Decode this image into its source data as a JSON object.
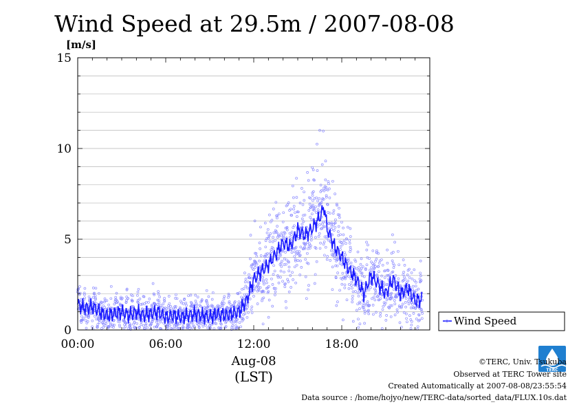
{
  "chart_data": {
    "type": "scatter",
    "title": "Wind Speed at 29.5m / 2007-08-08",
    "ylabel": "[m/s]",
    "xlabel_date": "Aug-08",
    "xlabel_tz": "(LST)",
    "xlim_hours": [
      0,
      24
    ],
    "ylim": [
      0,
      15
    ],
    "yticks": [
      0,
      5,
      10,
      15
    ],
    "xticks": [
      {
        "hour": 0,
        "label": "00:00"
      },
      {
        "hour": 6,
        "label": "06:00"
      },
      {
        "hour": 12,
        "label": "12:00"
      },
      {
        "hour": 18,
        "label": "18:00"
      }
    ],
    "grid": true,
    "legend_position": "right-bottom",
    "series": [
      {
        "name": "Wind Speed",
        "color": "#1a1aff",
        "point_color": "#8c8cff",
        "note": "",
        "mean_curve": [
          [
            0.0,
            1.4
          ],
          [
            0.5,
            1.2
          ],
          [
            1.0,
            1.3
          ],
          [
            1.5,
            1.0
          ],
          [
            2.0,
            0.8
          ],
          [
            2.5,
            0.9
          ],
          [
            3.0,
            1.0
          ],
          [
            3.5,
            0.8
          ],
          [
            4.0,
            1.0
          ],
          [
            4.5,
            0.8
          ],
          [
            5.0,
            0.9
          ],
          [
            5.5,
            1.0
          ],
          [
            6.0,
            0.7
          ],
          [
            6.5,
            0.8
          ],
          [
            7.0,
            0.7
          ],
          [
            7.5,
            0.8
          ],
          [
            8.0,
            0.9
          ],
          [
            8.5,
            0.8
          ],
          [
            9.0,
            0.7
          ],
          [
            9.5,
            0.9
          ],
          [
            10.0,
            0.8
          ],
          [
            10.5,
            0.9
          ],
          [
            11.0,
            1.0
          ],
          [
            11.5,
            1.6
          ],
          [
            12.0,
            2.8
          ],
          [
            12.5,
            3.2
          ],
          [
            13.0,
            3.6
          ],
          [
            13.5,
            4.2
          ],
          [
            14.0,
            4.8
          ],
          [
            14.5,
            4.6
          ],
          [
            15.0,
            5.5
          ],
          [
            15.5,
            5.2
          ],
          [
            16.0,
            5.6
          ],
          [
            16.5,
            6.2
          ],
          [
            16.8,
            6.8
          ],
          [
            17.0,
            5.6
          ],
          [
            17.5,
            4.6
          ],
          [
            18.0,
            4.0
          ],
          [
            18.5,
            3.3
          ],
          [
            19.0,
            2.8
          ],
          [
            19.5,
            2.0
          ],
          [
            20.0,
            3.0
          ],
          [
            20.5,
            2.5
          ],
          [
            21.0,
            2.0
          ],
          [
            21.5,
            2.8
          ],
          [
            22.0,
            2.0
          ],
          [
            22.5,
            2.3
          ],
          [
            23.0,
            1.6
          ],
          [
            23.5,
            1.7
          ]
        ],
        "spread_sd": [
          [
            0,
            0.45
          ],
          [
            11,
            0.45
          ],
          [
            11.5,
            0.7
          ],
          [
            12,
            1.0
          ],
          [
            14,
            1.3
          ],
          [
            16,
            1.5
          ],
          [
            17,
            1.4
          ],
          [
            19,
            1.0
          ],
          [
            21,
            0.8
          ],
          [
            23.5,
            0.7
          ]
        ],
        "max_observed": 11.0,
        "max_observed_hour": 16.5
      }
    ]
  },
  "credits": {
    "copyright": "©TERC, Univ. Tsukuba",
    "site": "Observed at TERC Tower site",
    "created": "Created Automatically at 2007-08-08/23:55:54",
    "source": "Data source : /home/hojyo/new/TERC-data/sorted_data/FLUX.10s.dat"
  },
  "logo": {
    "label": "TERC",
    "color": "#1f7fd0"
  }
}
